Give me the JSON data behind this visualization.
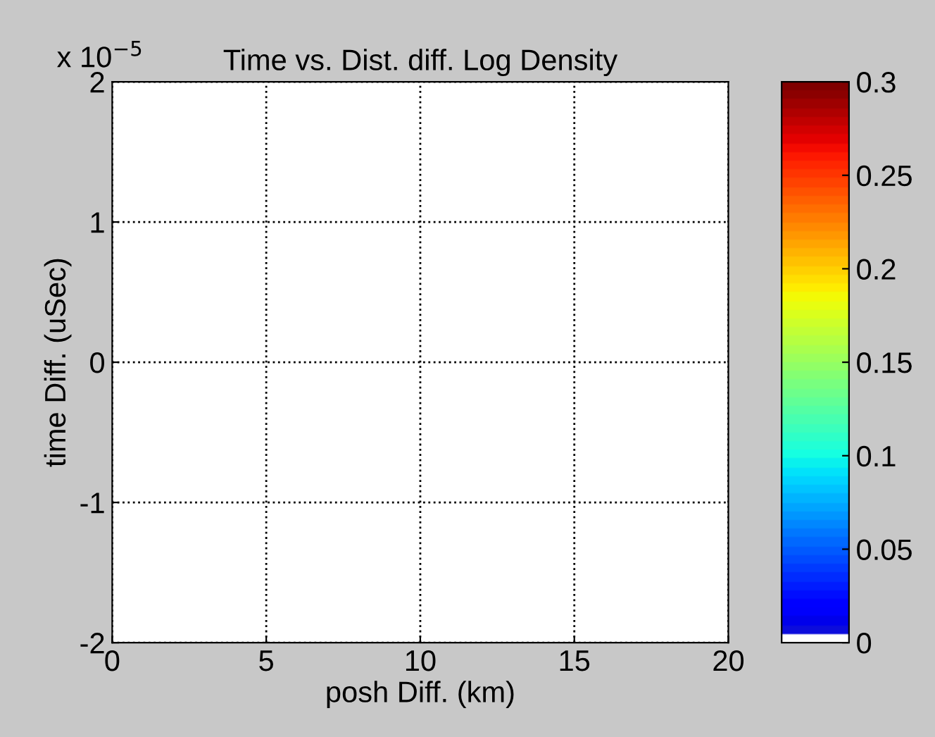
{
  "chart_data": {
    "type": "heatmap",
    "title": "Time vs. Dist. diff. Log Density",
    "xlabel": "posh Diff. (km)",
    "ylabel": "time Diff. (uSec)",
    "annotations": [
      "x 10$^{−5}$"
    ],
    "cells": [
      [
        0
      ]
    ],
    "xlim": [
      0,
      20
    ],
    "xticks": [
      0,
      5,
      10,
      15,
      20
    ],
    "ylim": [
      -2,
      2
    ],
    "yticks": [
      -2,
      -1,
      0,
      1,
      2
    ],
    "clim": [
      0,
      0.3
    ],
    "cticks": [
      0,
      0.05,
      0.1,
      0.15,
      0.2,
      0.25,
      0.3
    ],
    "grid": true
  }
}
